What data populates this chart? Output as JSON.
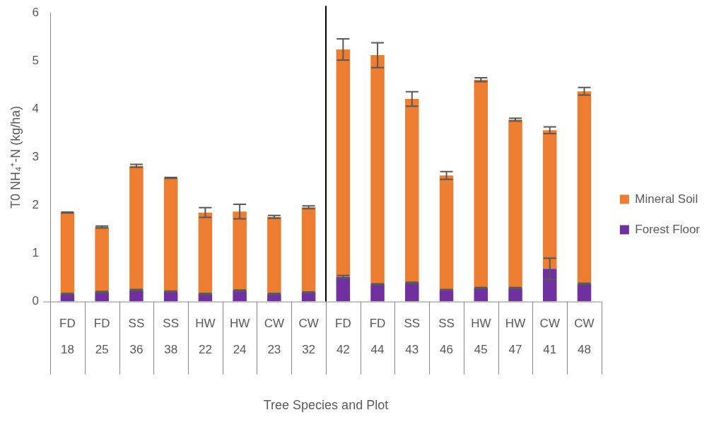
{
  "chart_data": {
    "type": "bar",
    "stacked": true,
    "xlabel": "Tree Species and Plot",
    "ylabel": "T0 NH₄⁺-N (kg/ha)",
    "categories": [
      "FD\n18",
      "FD\n25",
      "SS\n36",
      "SS\n38",
      "HW\n22",
      "HW\n24",
      "CW\n23",
      "CW\n32",
      "FD\n42",
      "FD\n44",
      "SS\n43",
      "SS\n46",
      "HW\n45",
      "HW\n47",
      "CW\n41",
      "CW\n48"
    ],
    "series": [
      {
        "name": "Forest Floor",
        "color": "#7030a0",
        "values": [
          0.16,
          0.2,
          0.24,
          0.21,
          0.16,
          0.23,
          0.16,
          0.19,
          0.51,
          0.36,
          0.39,
          0.24,
          0.28,
          0.28,
          0.68,
          0.37
        ],
        "errors": [
          0.01,
          0.01,
          0.01,
          0.01,
          0.01,
          0.01,
          0.01,
          0.01,
          0.03,
          0.01,
          0.01,
          0.01,
          0.01,
          0.01,
          0.22,
          0.01
        ]
      },
      {
        "name": "Mineral Soil",
        "color": "#ed7d31",
        "values": [
          1.69,
          1.35,
          2.58,
          2.36,
          1.69,
          1.64,
          1.6,
          1.77,
          4.73,
          4.76,
          3.82,
          2.38,
          4.33,
          3.5,
          2.88,
          4.0
        ],
        "errors": [
          0.01,
          0.02,
          0.03,
          0.01,
          0.1,
          0.15,
          0.03,
          0.03,
          0.22,
          0.26,
          0.15,
          0.08,
          0.04,
          0.03,
          0.07,
          0.08
        ]
      }
    ],
    "ylim": [
      0,
      6
    ],
    "yticks": [
      0,
      1,
      2,
      3,
      4,
      5,
      6
    ],
    "grid": false,
    "legend": "right"
  }
}
